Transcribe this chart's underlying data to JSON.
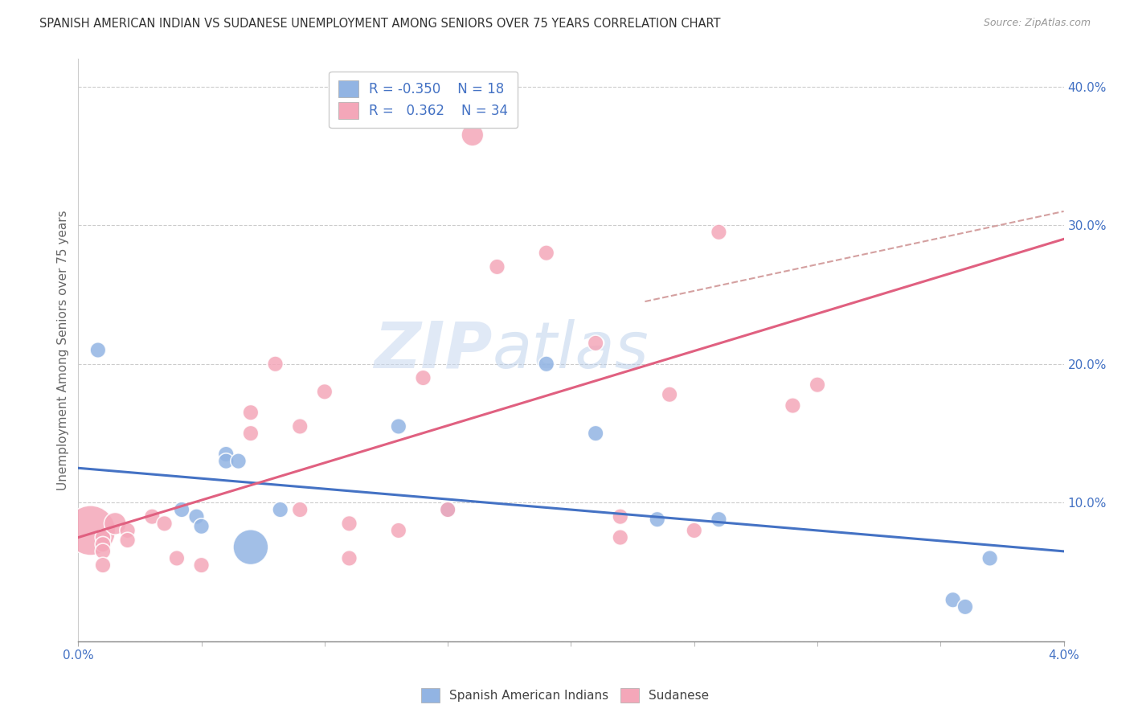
{
  "title": "SPANISH AMERICAN INDIAN VS SUDANESE UNEMPLOYMENT AMONG SENIORS OVER 75 YEARS CORRELATION CHART",
  "source": "Source: ZipAtlas.com",
  "ylabel": "Unemployment Among Seniors over 75 years",
  "xlim": [
    0.0,
    0.04
  ],
  "ylim": [
    0.0,
    0.42
  ],
  "yticks": [
    0.0,
    0.1,
    0.2,
    0.3,
    0.4
  ],
  "ytick_labels": [
    "",
    "10.0%",
    "20.0%",
    "30.0%",
    "40.0%"
  ],
  "xticks_minor": [
    0.0,
    0.005,
    0.01,
    0.015,
    0.02,
    0.025,
    0.03,
    0.035,
    0.04
  ],
  "legend_blue_r": "-0.350",
  "legend_blue_n": "18",
  "legend_pink_r": " 0.362",
  "legend_pink_n": "34",
  "blue_color": "#92b4e3",
  "pink_color": "#f4a7b9",
  "blue_line_color": "#4472c4",
  "pink_line_color": "#e06080",
  "dashed_line_color": "#d4a0a0",
  "watermark_text": "ZIP",
  "watermark_text2": "atlas",
  "blue_scatter_x": [
    0.0008,
    0.0042,
    0.0048,
    0.005,
    0.006,
    0.006,
    0.0065,
    0.007,
    0.0082,
    0.013,
    0.015,
    0.019,
    0.021,
    0.0235,
    0.026,
    0.0355,
    0.036,
    0.037
  ],
  "blue_scatter_y": [
    0.21,
    0.095,
    0.09,
    0.083,
    0.135,
    0.13,
    0.13,
    0.068,
    0.095,
    0.155,
    0.095,
    0.2,
    0.15,
    0.088,
    0.088,
    0.03,
    0.025,
    0.06
  ],
  "blue_scatter_size": [
    1,
    1,
    1,
    1,
    1,
    1,
    1,
    5,
    1,
    1,
    1,
    1,
    1,
    1,
    1,
    1,
    1,
    1
  ],
  "pink_scatter_x": [
    0.0005,
    0.001,
    0.001,
    0.001,
    0.001,
    0.0015,
    0.002,
    0.002,
    0.003,
    0.0035,
    0.004,
    0.005,
    0.007,
    0.007,
    0.008,
    0.009,
    0.009,
    0.01,
    0.011,
    0.011,
    0.013,
    0.014,
    0.015,
    0.016,
    0.017,
    0.019,
    0.021,
    0.022,
    0.022,
    0.024,
    0.025,
    0.026,
    0.029,
    0.03
  ],
  "pink_scatter_y": [
    0.08,
    0.075,
    0.07,
    0.065,
    0.055,
    0.085,
    0.08,
    0.073,
    0.09,
    0.085,
    0.06,
    0.055,
    0.165,
    0.15,
    0.2,
    0.155,
    0.095,
    0.18,
    0.085,
    0.06,
    0.08,
    0.19,
    0.095,
    0.365,
    0.27,
    0.28,
    0.215,
    0.09,
    0.075,
    0.178,
    0.08,
    0.295,
    0.17,
    0.185
  ],
  "pink_scatter_size": [
    10,
    1,
    1,
    1,
    1,
    2,
    1,
    1,
    1,
    1,
    1,
    1,
    1,
    1,
    1,
    1,
    1,
    1,
    1,
    1,
    1,
    1,
    1,
    2,
    1,
    1,
    1,
    1,
    1,
    1,
    1,
    1,
    1,
    1
  ],
  "blue_trend_x": [
    0.0,
    0.04
  ],
  "blue_trend_y": [
    0.125,
    0.065
  ],
  "pink_trend_x": [
    0.0,
    0.04
  ],
  "pink_trend_y": [
    0.075,
    0.29
  ],
  "dashed_trend_x": [
    0.023,
    0.04
  ],
  "dashed_trend_y": [
    0.245,
    0.31
  ]
}
